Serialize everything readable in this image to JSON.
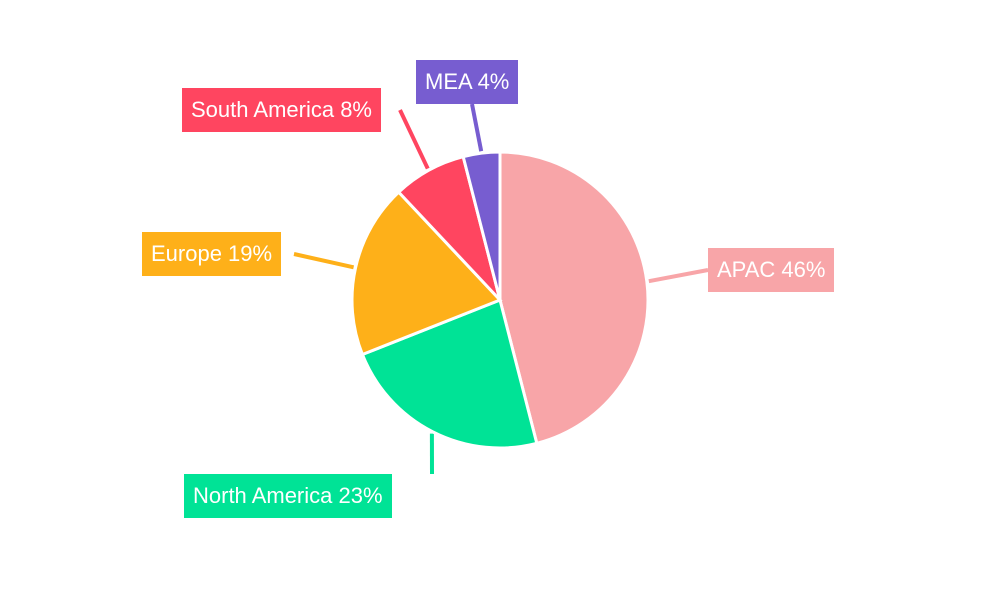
{
  "chart_data": {
    "type": "pie",
    "title": "",
    "categories": [
      "APAC",
      "North America",
      "Europe",
      "South America",
      "MEA"
    ],
    "values": [
      46,
      23,
      19,
      8,
      4
    ],
    "colors": [
      "#f8a5a8",
      "#00e396",
      "#feb019",
      "#ff4560",
      "#775dd0"
    ],
    "labels": [
      "APAC 46%",
      "North America 23%",
      "Europe 19%",
      "South America 8%",
      "MEA 4%"
    ],
    "start_angle": "top, clockwise",
    "legend": "none (callout labels)"
  }
}
